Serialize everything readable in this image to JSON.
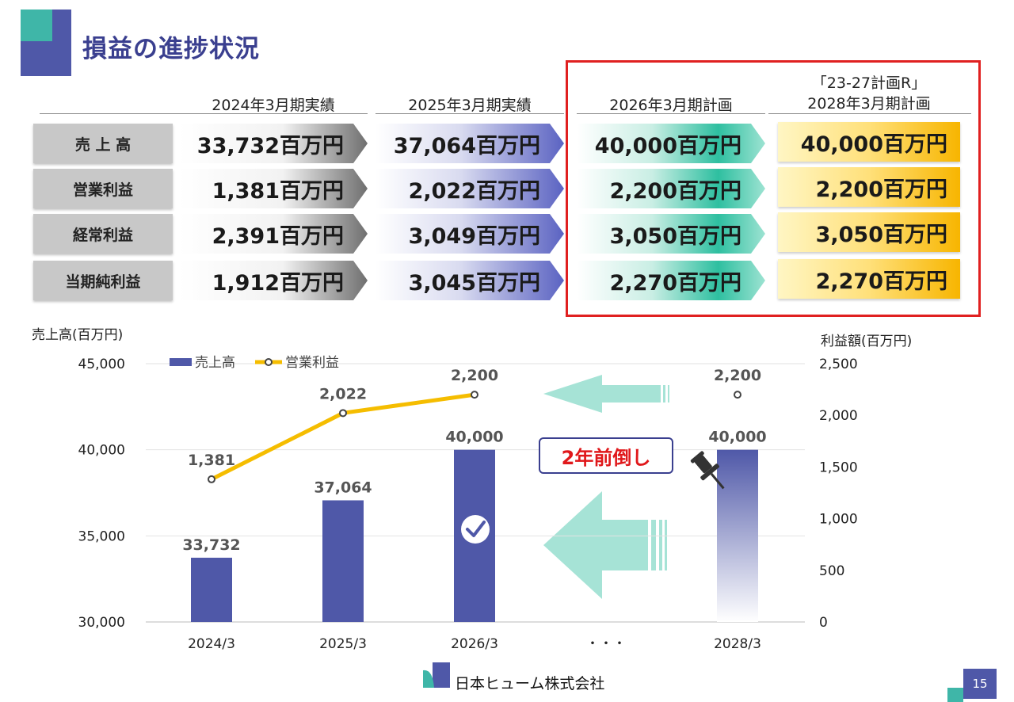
{
  "title": "損益の進捗状況",
  "table": {
    "columns": [
      "2024年3月期実績",
      "2025年3月期実績",
      "2026年3月期計画",
      "「23-27計画R」",
      "2028年3月期計画"
    ],
    "rows": [
      {
        "label": "売 上 高",
        "values": [
          "33,732百万円",
          "37,064百万円",
          "40,000百万円",
          "40,000百万円"
        ]
      },
      {
        "label": "営業利益",
        "values": [
          "1,381百万円",
          "2,022百万円",
          "2,200百万円",
          "2,200百万円"
        ]
      },
      {
        "label": "経常利益",
        "values": [
          "2,391百万円",
          "3,049百万円",
          "3,050百万円",
          "3,050百万円"
        ]
      },
      {
        "label": "当期純利益",
        "values": [
          "1,912百万円",
          "3,045百万円",
          "2,270百万円",
          "2,270百万円"
        ]
      }
    ]
  },
  "chart_data": {
    "type": "bar",
    "categories": [
      "2024/3",
      "2025/3",
      "2026/3",
      "・・・",
      "2028/3"
    ],
    "ylabel": "売上高(百万円)",
    "y2label": "利益額(百万円)",
    "ylim": [
      30000,
      45000
    ],
    "yticks": [
      "45,000",
      "40,000",
      "35,000",
      "30,000"
    ],
    "y2lim": [
      0,
      2500
    ],
    "y2ticks": [
      "2,500",
      "2,000",
      "1,500",
      "1,000",
      "500",
      "0"
    ],
    "series": [
      {
        "name": "売上高",
        "kind": "bar",
        "values": [
          33732,
          37064,
          40000,
          null,
          40000
        ],
        "labels": [
          "33,732",
          "37,064",
          "40,000",
          "",
          "40,000"
        ]
      },
      {
        "name": "営業利益",
        "kind": "line",
        "axis": "right",
        "values": [
          1381,
          2022,
          2200,
          null,
          2200
        ],
        "labels": [
          "1,381",
          "2,022",
          "2,200",
          "",
          "2,200"
        ]
      }
    ],
    "annotation": "2年前倒し",
    "legend": "top-left",
    "colors": {
      "bar": "#4f58a8",
      "line": "#f5bd00",
      "arrow": "#a6e3d6"
    }
  },
  "footer": {
    "company": "日本ヒューム株式会社",
    "page": "15"
  }
}
